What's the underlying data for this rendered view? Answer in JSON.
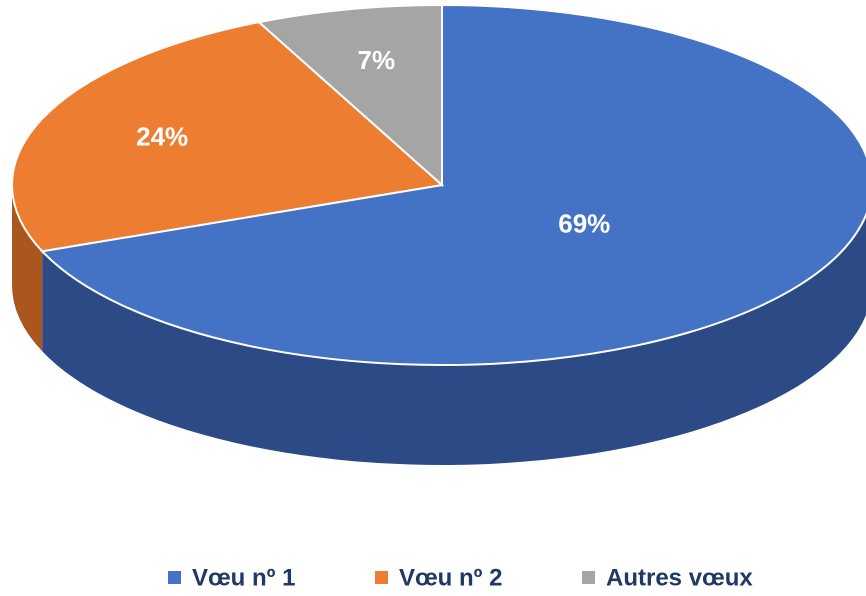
{
  "chart_data": {
    "type": "pie",
    "categories": [
      "Vœu nº 1",
      "Vœu nº 2",
      "Autres vœux"
    ],
    "values": [
      69,
      24,
      7
    ],
    "value_labels": [
      "69%",
      "24%",
      "7%"
    ],
    "colors": [
      "#4472c4",
      "#ed7d31",
      "#a5a5a5"
    ],
    "side_colors": [
      "#2c4a85",
      "#a9561f",
      "#707070"
    ],
    "legend": "bottom"
  }
}
